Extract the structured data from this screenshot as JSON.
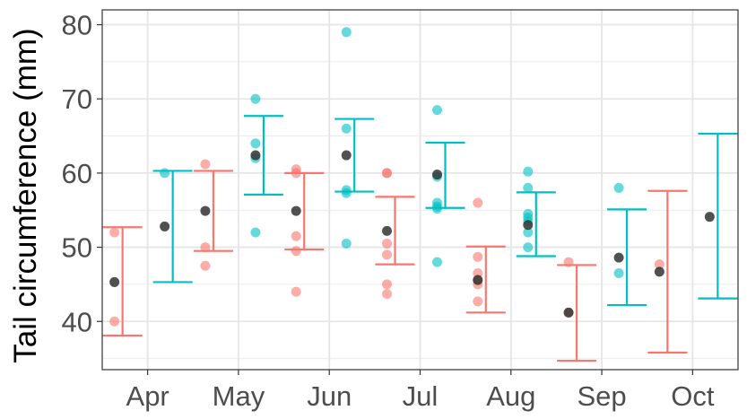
{
  "chart_data": {
    "type": "scatter",
    "title": "",
    "xlabel": "",
    "ylabel": "Tail circumference (mm)",
    "categories": [
      "Apr",
      "May",
      "Jun",
      "Jul",
      "Aug",
      "Sep",
      "Oct"
    ],
    "yticks": [
      40,
      50,
      60,
      70,
      80
    ],
    "ylim": [
      33.5,
      82
    ],
    "grid": true,
    "legend": "none",
    "colors": {
      "group1": "#F8766D",
      "group2": "#00BFC4",
      "mean": "#333333"
    },
    "series": [
      {
        "color": "#F8766D",
        "points": [
          {
            "x": "Apr",
            "y": 52.0
          },
          {
            "x": "Apr",
            "y": 40.0
          },
          {
            "x": "May",
            "y": 61.2
          },
          {
            "x": "May",
            "y": 50.0
          },
          {
            "x": "May",
            "y": 47.5
          },
          {
            "x": "Jun",
            "y": 60.5
          },
          {
            "x": "Jun",
            "y": 60.0
          },
          {
            "x": "Jun",
            "y": 51.5
          },
          {
            "x": "Jun",
            "y": 49.5
          },
          {
            "x": "Jun",
            "y": 44.0
          },
          {
            "x": "Jul",
            "y": 60.0
          },
          {
            "x": "Jul",
            "y": 60.0
          },
          {
            "x": "Jul",
            "y": 50.5
          },
          {
            "x": "Jul",
            "y": 49.0
          },
          {
            "x": "Jul",
            "y": 45.0
          },
          {
            "x": "Jul",
            "y": 43.7
          },
          {
            "x": "Aug",
            "y": 56.0
          },
          {
            "x": "Aug",
            "y": 48.7
          },
          {
            "x": "Aug",
            "y": 46.5
          },
          {
            "x": "Aug",
            "y": 45.5
          },
          {
            "x": "Aug",
            "y": 45.0
          },
          {
            "x": "Aug",
            "y": 42.7
          },
          {
            "x": "Sep",
            "y": 48.0
          },
          {
            "x": "Sep",
            "y": 41.2
          },
          {
            "x": "Oct",
            "y": 47.7
          }
        ],
        "means": [
          45.3,
          54.9,
          54.9,
          52.2,
          45.6,
          41.2,
          46.7
        ],
        "error_low": [
          38.1,
          49.5,
          49.7,
          47.7,
          41.2,
          34.7,
          35.8
        ],
        "error_high": [
          52.7,
          60.3,
          60.0,
          56.8,
          50.1,
          47.6,
          57.6
        ]
      },
      {
        "color": "#00BFC4",
        "points": [
          {
            "x": "Apr",
            "y": 60.0
          },
          {
            "x": "May",
            "y": 70.0
          },
          {
            "x": "May",
            "y": 64.0
          },
          {
            "x": "May",
            "y": 62.0
          },
          {
            "x": "May",
            "y": 52.0
          },
          {
            "x": "Jun",
            "y": 79.0
          },
          {
            "x": "Jun",
            "y": 66.0
          },
          {
            "x": "Jun",
            "y": 57.7
          },
          {
            "x": "Jun",
            "y": 57.3
          },
          {
            "x": "Jun",
            "y": 50.5
          },
          {
            "x": "Jul",
            "y": 68.5
          },
          {
            "x": "Jul",
            "y": 59.5
          },
          {
            "x": "Jul",
            "y": 56.0
          },
          {
            "x": "Jul",
            "y": 55.5
          },
          {
            "x": "Jul",
            "y": 55.2
          },
          {
            "x": "Jul",
            "y": 48.0
          },
          {
            "x": "Aug",
            "y": 60.2
          },
          {
            "x": "Aug",
            "y": 58.0
          },
          {
            "x": "Aug",
            "y": 54.5
          },
          {
            "x": "Aug",
            "y": 54.0
          },
          {
            "x": "Aug",
            "y": 53.5
          },
          {
            "x": "Aug",
            "y": 52.0
          },
          {
            "x": "Aug",
            "y": 50.0
          },
          {
            "x": "Sep",
            "y": 58.0
          },
          {
            "x": "Sep",
            "y": 46.5
          }
        ],
        "means": [
          52.8,
          62.4,
          62.4,
          59.8,
          53.0,
          48.6,
          54.1
        ],
        "error_low": [
          45.3,
          57.1,
          57.5,
          55.3,
          48.8,
          42.2,
          43.1
        ],
        "error_high": [
          60.3,
          67.7,
          67.3,
          64.1,
          57.4,
          55.1,
          65.3
        ]
      }
    ]
  }
}
